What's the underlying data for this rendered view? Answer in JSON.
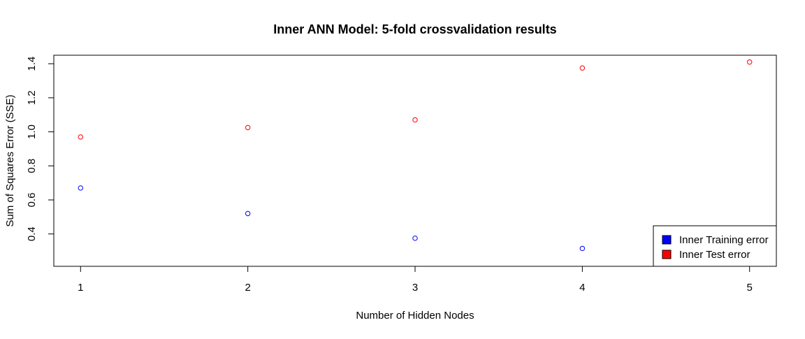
{
  "chart_data": {
    "type": "scatter",
    "title": "Inner ANN Model: 5-fold crossvalidation results",
    "xlabel": "Number of Hidden Nodes",
    "ylabel": "Sum of Squares Error (SSE)",
    "x": [
      1,
      2,
      3,
      4,
      5
    ],
    "x_ticks": [
      "1",
      "2",
      "3",
      "4",
      "5"
    ],
    "y_ticks": [
      "0.4",
      "0.6",
      "0.8",
      "1.0",
      "1.2",
      "1.4"
    ],
    "xlim": [
      0.84,
      5.16
    ],
    "ylim": [
      0.21,
      1.45
    ],
    "grid": false,
    "legend_position": "bottom-right",
    "series": [
      {
        "name": "Inner Training error",
        "color": "#0000ff",
        "values": [
          0.67,
          0.52,
          0.375,
          0.315,
          null
        ]
      },
      {
        "name": "Inner Test error",
        "color": "#ff0000",
        "values": [
          0.97,
          1.025,
          1.07,
          1.375,
          1.41
        ]
      }
    ]
  }
}
